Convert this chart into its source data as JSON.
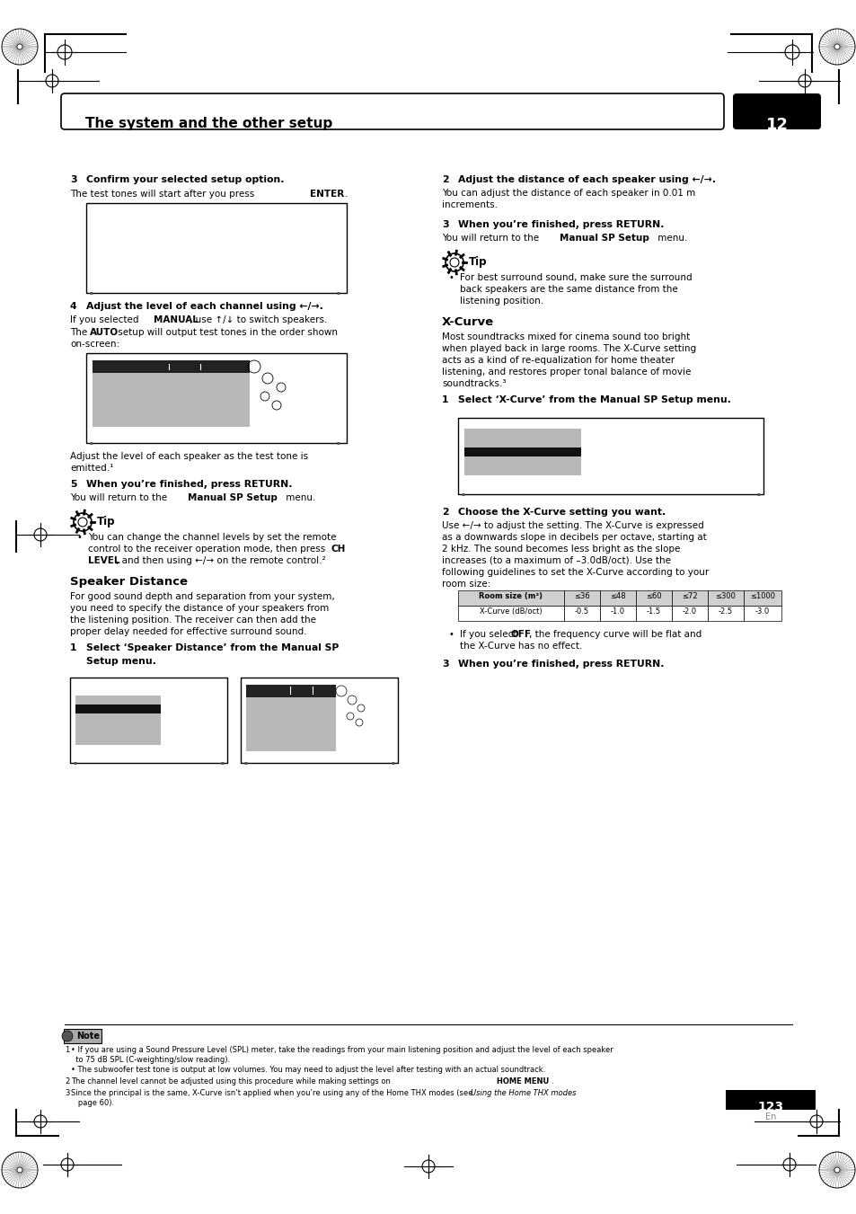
{
  "page_width": 9.54,
  "page_height": 13.51,
  "bg_color": "#ffffff",
  "header_title": "The system and the other setup",
  "header_number": "12",
  "page_number": "123",
  "page_number_sub": "En",
  "sections": {
    "step3_title": "3    Confirm your selected setup option.",
    "step3_body": "The test tones will start after you press ENTER.",
    "step4_title_pre": "4    Adjust the level of each channel using ",
    "step4_title_arrow": "←/→.",
    "step4_body1_pre": "If you selected ",
    "step4_body1_bold": "MANUAL",
    "step4_body1_mid": ", use ↑/↓ to switch speakers.",
    "step4_body2_pre": "The ",
    "step4_body2_bold": "AUTO",
    "step4_body2_body": " setup will output test tones in the order shown\non-screen:",
    "step4_body3": "Adjust the level of each speaker as the test tone is\nemitted.¹",
    "step5_title": "5    When you’re finished, press RETURN.",
    "step5_body": "You will return to the Manual SP Setup menu.",
    "tip_title": "Tip",
    "tip_body": "You can change the channel levels by set the remote\ncontrol to the receiver operation mode, then press CH\nLEVEL, and then using ←/→ on the remote control.²",
    "speaker_dist_title": "Speaker Distance",
    "speaker_dist_body": "For good sound depth and separation from your system,\nyou need to specify the distance of your speakers from\nthe listening position. The receiver can then add the\nproper delay needed for effective surround sound.",
    "speaker_dist_step1_title": "1    Select ‘Speaker Distance’ from the Manual SP\nSetup menu.",
    "right_step2_title": "2    Adjust the distance of each speaker using ←/→.",
    "right_step2_body": "You can adjust the distance of each speaker in 0.01 m\nincrements.",
    "right_step3_title": "3    When you’re finished, press RETURN.",
    "right_step3_body": "You will return to the Manual SP Setup menu.",
    "tip2_title": "Tip",
    "tip2_body": "For best surround sound, make sure the surround\nback speakers are the same distance from the\nlistening position.",
    "xcurve_title": "X-Curve",
    "xcurve_body": "Most soundtracks mixed for cinema sound too bright\nwhen played back in large rooms. The X-Curve setting\nacts as a kind of re-equalization for home theater\nlistening, and restores proper tonal balance of movie\nsoundtracks.³",
    "xcurve_step1_title": "1    Select ‘X-Curve’ from the Manual SP Setup menu.",
    "xcurve_step2_title": "2    Choose the X-Curve setting you want.",
    "xcurve_step2_body": "Use ←/→ to adjust the setting. The X-Curve is expressed\nas a downwards slope in decibels per octave, starting at\n2 kHz. The sound becomes less bright as the slope\nincreases (to a maximum of –3.0dB/oct). Use the\nfollowing guidelines to set the X-Curve according to your\nroom size:",
    "xcurve_step3_title": "3    When you’re finished, press RETURN.",
    "xcurve_off_note": "If you select OFF, the frequency curve will be flat and\nthe X-Curve has no effect.",
    "table_headers": [
      "≤36",
      "≤48",
      "≤60",
      "≤72",
      "≤300",
      "≤1000"
    ],
    "table_row1_label": "Room size (m²)",
    "table_row2_label": "X-Curve (dB/oct)",
    "table_values": [
      "-0.5",
      "-1.0",
      "-1.5",
      "-2.0",
      "-2.5",
      "-3.0"
    ],
    "note_title": "Note",
    "note1a": "  • If you are using a Sound Pressure Level (SPL) meter, take the readings from your main listening position and adjust the level of each speaker",
    "note1b": "     to 75 dB SPL (C-weighting/slow reading).",
    "note1c": "  • The subwoofer test tone is output at low volumes. You may need to adjust the level after testing with an actual soundtrack.",
    "note2": "2  The channel level cannot be adjusted using this procedure while making settings on HOME MENU.",
    "note3": "3  Since the principal is the same, X-Curve isn’t applied when you’re using any of the Home THX modes (see Using the Home THX modes on\n   page 60)."
  }
}
